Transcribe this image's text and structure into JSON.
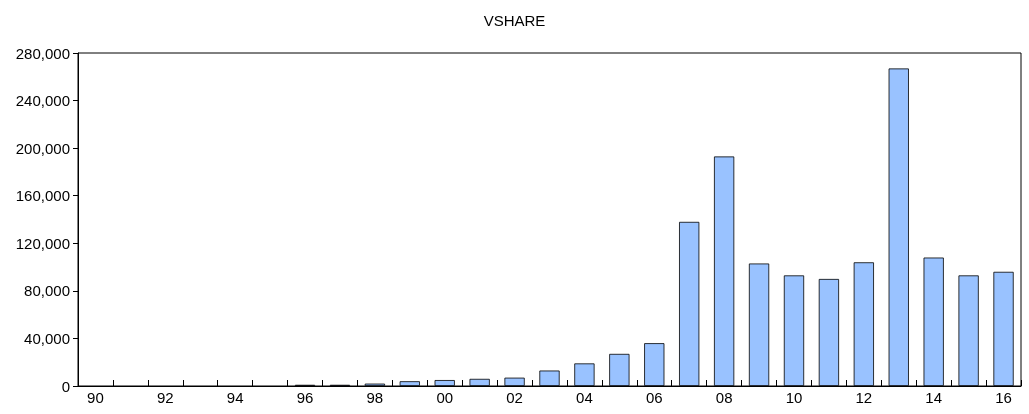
{
  "chart_data": {
    "type": "bar",
    "title": "VSHARE",
    "categories": [
      "90",
      null,
      "92",
      null,
      "94",
      null,
      "96",
      null,
      "98",
      null,
      "00",
      null,
      "02",
      null,
      "04",
      null,
      "06",
      null,
      "08",
      null,
      "10",
      null,
      "12",
      null,
      "14",
      null,
      "16"
    ],
    "values": [
      0,
      0,
      0,
      0,
      0,
      0,
      1000,
      1000,
      2000,
      4000,
      5000,
      6000,
      7000,
      13000,
      19000,
      27000,
      36000,
      138000,
      193000,
      103000,
      93000,
      90000,
      104000,
      267000,
      108000,
      93000,
      96000
    ],
    "color": "#99c2ff",
    "ylim": [
      0,
      280000
    ],
    "yticks": [
      0,
      {
        "value": 40000,
        "label": "40,000"
      },
      {
        "value": 80000,
        "label": "80,000"
      },
      {
        "value": 120000,
        "label": "120,000"
      },
      {
        "value": 160000,
        "label": "160,000"
      },
      {
        "value": 200000,
        "label": "200,000"
      },
      {
        "value": 240000,
        "label": "240,000"
      },
      {
        "value": 280000,
        "label": "280,000"
      }
    ],
    "grid": false
  }
}
